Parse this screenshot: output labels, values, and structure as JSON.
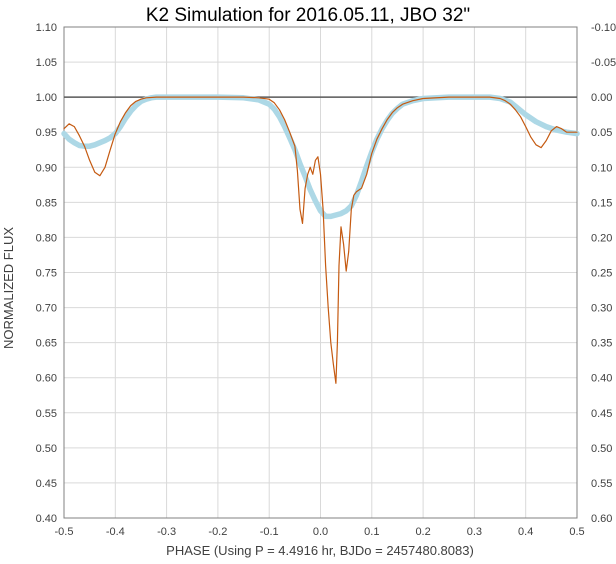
{
  "chart_data": {
    "type": "line",
    "title": "K2 Simulation for 2016.05.11, JBO 32\"",
    "xlabel": "PHASE (Using P = 4.4916 hr, BJDo = 2457480.8083)",
    "ylabel": "NORMALIZED FLUX",
    "xlim": [
      -0.5,
      0.5
    ],
    "ylim": [
      0.4,
      1.1
    ],
    "y2lim": [
      -0.1,
      0.6
    ],
    "y2_inverted": true,
    "grid": true,
    "legend": "none",
    "reference_line": 1.0,
    "x_ticks": [
      "-0.5",
      "-0.4",
      "-0.3",
      "-0.2",
      "-0.1",
      "0.0",
      "0.1",
      "0.2",
      "0.3",
      "0.4",
      "0.5"
    ],
    "y_ticks": [
      "0.40",
      "0.45",
      "0.50",
      "0.55",
      "0.60",
      "0.65",
      "0.70",
      "0.75",
      "0.80",
      "0.85",
      "0.90",
      "0.95",
      "1.00",
      "1.05",
      "1.10"
    ],
    "y2_ticks": [
      "-0.10",
      "-0.05",
      "0.00",
      "0.05",
      "0.10",
      "0.15",
      "0.20",
      "0.25",
      "0.30",
      "0.35",
      "0.40",
      "0.45",
      "0.50",
      "0.55",
      "0.60"
    ],
    "series": [
      {
        "color": "#C55A11",
        "style": "thin-line",
        "x": [
          -0.5,
          -0.49,
          -0.48,
          -0.47,
          -0.46,
          -0.45,
          -0.44,
          -0.43,
          -0.42,
          -0.41,
          -0.4,
          -0.39,
          -0.38,
          -0.37,
          -0.36,
          -0.35,
          -0.34,
          -0.32,
          -0.3,
          -0.25,
          -0.2,
          -0.15,
          -0.12,
          -0.1,
          -0.09,
          -0.08,
          -0.07,
          -0.06,
          -0.05,
          -0.045,
          -0.04,
          -0.035,
          -0.03,
          -0.025,
          -0.02,
          -0.015,
          -0.01,
          -0.005,
          0.0,
          0.005,
          0.01,
          0.015,
          0.02,
          0.025,
          0.03,
          0.033,
          0.036,
          0.04,
          0.045,
          0.05,
          0.055,
          0.06,
          0.065,
          0.07,
          0.08,
          0.09,
          0.1,
          0.11,
          0.12,
          0.13,
          0.14,
          0.15,
          0.16,
          0.18,
          0.2,
          0.25,
          0.3,
          0.33,
          0.35,
          0.36,
          0.37,
          0.38,
          0.39,
          0.4,
          0.41,
          0.42,
          0.43,
          0.44,
          0.45,
          0.46,
          0.47,
          0.48,
          0.49,
          0.5
        ],
        "y": [
          0.955,
          0.962,
          0.958,
          0.945,
          0.93,
          0.91,
          0.893,
          0.888,
          0.9,
          0.925,
          0.948,
          0.965,
          0.978,
          0.988,
          0.994,
          0.997,
          0.999,
          1.0,
          1.0,
          1.0,
          1.0,
          1.0,
          0.999,
          0.997,
          0.992,
          0.982,
          0.968,
          0.95,
          0.93,
          0.895,
          0.84,
          0.82,
          0.87,
          0.89,
          0.9,
          0.89,
          0.91,
          0.915,
          0.89,
          0.84,
          0.76,
          0.7,
          0.65,
          0.62,
          0.592,
          0.65,
          0.76,
          0.815,
          0.79,
          0.752,
          0.78,
          0.84,
          0.86,
          0.865,
          0.87,
          0.89,
          0.92,
          0.94,
          0.955,
          0.968,
          0.978,
          0.985,
          0.99,
          0.995,
          0.998,
          1.0,
          1.0,
          1.0,
          0.998,
          0.995,
          0.99,
          0.982,
          0.972,
          0.958,
          0.943,
          0.932,
          0.928,
          0.938,
          0.952,
          0.958,
          0.955,
          0.95,
          0.95,
          0.95
        ]
      },
      {
        "color": "#ADD8E6",
        "style": "thick-line",
        "x": [
          -0.5,
          -0.49,
          -0.48,
          -0.47,
          -0.46,
          -0.45,
          -0.44,
          -0.43,
          -0.42,
          -0.41,
          -0.4,
          -0.39,
          -0.38,
          -0.37,
          -0.36,
          -0.35,
          -0.34,
          -0.33,
          -0.32,
          -0.3,
          -0.25,
          -0.2,
          -0.15,
          -0.12,
          -0.1,
          -0.09,
          -0.08,
          -0.07,
          -0.06,
          -0.05,
          -0.04,
          -0.03,
          -0.02,
          -0.01,
          0.0,
          0.01,
          0.02,
          0.03,
          0.04,
          0.05,
          0.06,
          0.07,
          0.08,
          0.09,
          0.1,
          0.11,
          0.12,
          0.13,
          0.14,
          0.15,
          0.16,
          0.18,
          0.2,
          0.25,
          0.3,
          0.33,
          0.35,
          0.37,
          0.38,
          0.4,
          0.42,
          0.44,
          0.46,
          0.48,
          0.5
        ],
        "y": [
          0.948,
          0.94,
          0.935,
          0.931,
          0.93,
          0.93,
          0.932,
          0.935,
          0.938,
          0.942,
          0.948,
          0.958,
          0.97,
          0.98,
          0.988,
          0.994,
          0.997,
          0.999,
          1.0,
          1.0,
          1.0,
          1.0,
          0.999,
          0.996,
          0.99,
          0.983,
          0.972,
          0.958,
          0.942,
          0.925,
          0.905,
          0.887,
          0.868,
          0.852,
          0.838,
          0.83,
          0.83,
          0.832,
          0.834,
          0.838,
          0.845,
          0.86,
          0.88,
          0.902,
          0.922,
          0.94,
          0.955,
          0.967,
          0.977,
          0.984,
          0.99,
          0.995,
          0.998,
          1.0,
          1.0,
          1.0,
          0.998,
          0.993,
          0.987,
          0.975,
          0.965,
          0.958,
          0.953,
          0.95,
          0.948
        ]
      }
    ]
  }
}
